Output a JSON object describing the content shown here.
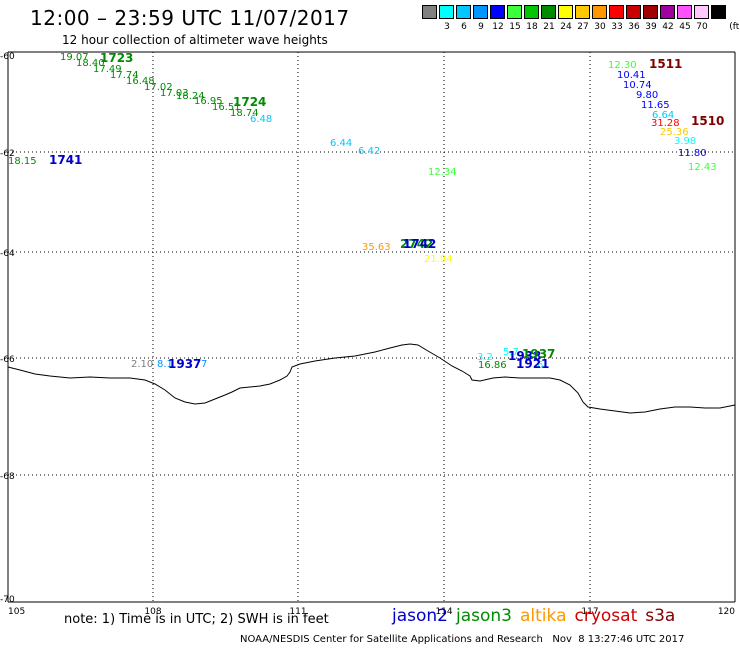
{
  "header": {
    "title": "12:00 – 23:59 UTC 11/07/2017",
    "subtitle": "12 hour collection of altimeter wave heights"
  },
  "legend": {
    "unit": "(ft)",
    "swatches": [
      {
        "color": "#808080",
        "label": ""
      },
      {
        "color": "#00ffff",
        "label": "3"
      },
      {
        "color": "#00c8ff",
        "label": "6"
      },
      {
        "color": "#0096ff",
        "label": "9"
      },
      {
        "color": "#0000ff",
        "label": "12"
      },
      {
        "color": "#3cff3c",
        "label": "15"
      },
      {
        "color": "#00c800",
        "label": "18"
      },
      {
        "color": "#008c00",
        "label": "21"
      },
      {
        "color": "#ffff00",
        "label": "24"
      },
      {
        "color": "#ffc800",
        "label": "27"
      },
      {
        "color": "#ff9600",
        "label": "30"
      },
      {
        "color": "#ff0000",
        "label": "33"
      },
      {
        "color": "#c80000",
        "label": "36"
      },
      {
        "color": "#a00000",
        "label": "39"
      },
      {
        "color": "#a000a0",
        "label": "42"
      },
      {
        "color": "#ff50ff",
        "label": "45"
      },
      {
        "color": "#ffc8ff",
        "label": "70"
      },
      {
        "color": "#000000",
        "label": ""
      }
    ]
  },
  "map": {
    "lat_labels": [
      "-60",
      "-62",
      "-64",
      "-66",
      "-68",
      "-70"
    ],
    "lon_labels": [
      "105",
      "108",
      "111",
      "114",
      "117",
      "120"
    ],
    "observations": [
      {
        "text": "19.07",
        "color": "#008c00"
      },
      {
        "text": "18.40",
        "color": "#008c00"
      },
      {
        "text": "17.49",
        "color": "#008c00"
      },
      {
        "text": "17.74",
        "color": "#008c00"
      },
      {
        "text": "16.48",
        "color": "#008c00"
      },
      {
        "text": "17.02",
        "color": "#008c00"
      },
      {
        "text": "17.03",
        "color": "#008c00"
      },
      {
        "text": "18.24",
        "color": "#008c00"
      },
      {
        "text": "16.95",
        "color": "#008c00"
      },
      {
        "text": "16.51",
        "color": "#008c00"
      },
      {
        "text": "18.74",
        "color": "#008c00"
      },
      {
        "text": "6.48",
        "color": "#00c8ff"
      },
      {
        "text": "18.15",
        "color": "#008c00"
      },
      {
        "text": "6.44",
        "color": "#00c8ff"
      },
      {
        "text": "6.42",
        "color": "#00c8ff"
      },
      {
        "text": "12.34",
        "color": "#3cff3c"
      },
      {
        "text": "35.63",
        "color": "#ff9600"
      },
      {
        "text": "21.94",
        "color": "#ffff00"
      },
      {
        "text": "2.10",
        "color": "#808080"
      },
      {
        "text": "8.1",
        "color": "#0096ff"
      },
      {
        "text": "7",
        "color": "#0096ff"
      },
      {
        "text": "3.2",
        "color": "#00ffff"
      },
      {
        "text": "16.86",
        "color": "#008c00"
      },
      {
        "text": "5.7",
        "color": "#00ffff"
      },
      {
        "text": "6",
        "color": "#00ffff"
      },
      {
        "text": "12.30",
        "color": "#3cff3c"
      },
      {
        "text": "10.41",
        "color": "#0000ff"
      },
      {
        "text": "10.74",
        "color": "#0000ff"
      },
      {
        "text": "9.80",
        "color": "#0000ff"
      },
      {
        "text": "11.65",
        "color": "#0000ff"
      },
      {
        "text": "6.64",
        "color": "#00c8ff"
      },
      {
        "text": "31.28",
        "color": "#ff0000"
      },
      {
        "text": "25.36",
        "color": "#ffc800"
      },
      {
        "text": "3.98",
        "color": "#00ffff"
      },
      {
        "text": "11.80",
        "color": "#0000ff"
      },
      {
        "text": "12.43",
        "color": "#3cff3c"
      }
    ],
    "passes": [
      {
        "text": "1723",
        "color": "#008c00"
      },
      {
        "text": "1724",
        "color": "#008c00"
      },
      {
        "text": "1741",
        "color": "#0000cc"
      },
      {
        "text": "2742",
        "color": "#008c00"
      },
      {
        "text": "1742",
        "color": "#0000cc"
      },
      {
        "text": "1937",
        "color": "#0000cc"
      },
      {
        "text": "1938",
        "color": "#0000cc"
      },
      {
        "text": "1937",
        "color": "#008c00"
      },
      {
        "text": "1921",
        "color": "#0000cc"
      },
      {
        "text": "1511",
        "color": "#800000"
      },
      {
        "text": "1510",
        "color": "#800000"
      }
    ]
  },
  "note": "note: 1) Time is in UTC; 2) SWH is in feet",
  "satellites": [
    {
      "name": "jason2",
      "color": "#0000cc"
    },
    {
      "name": "jason3",
      "color": "#008c00"
    },
    {
      "name": "altika",
      "color": "#ff9600"
    },
    {
      "name": "cryosat",
      "color": "#cc0000"
    },
    {
      "name": "s3a",
      "color": "#800000"
    }
  ],
  "footer": "NOAA/NESDIS Center for Satellite Applications and Research   Nov  8 13:27:46 UTC 2017"
}
